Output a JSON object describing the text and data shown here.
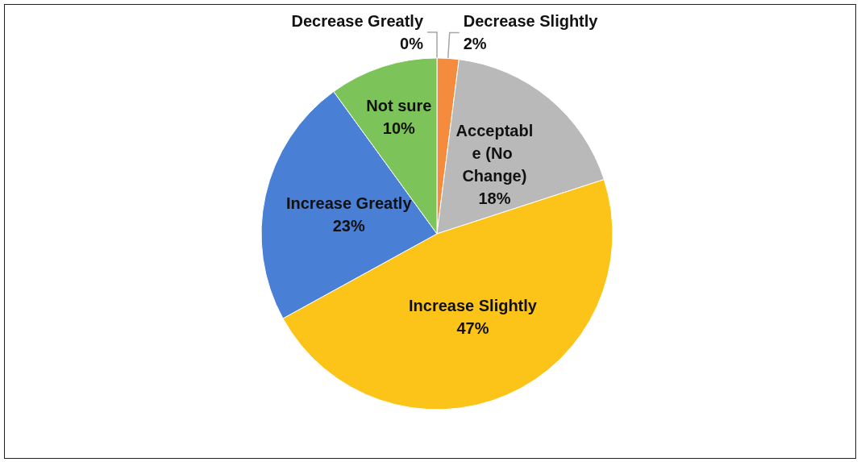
{
  "chart_data": {
    "type": "pie",
    "categories": [
      "Decrease Greatly",
      "Decrease Slightly",
      "Acceptable (No Change)",
      "Increase Slightly",
      "Increase Greatly",
      "Not sure"
    ],
    "values": [
      0,
      2,
      18,
      47,
      23,
      10
    ],
    "colors": [
      "#c0504d",
      "#f58b3c",
      "#b9b9b9",
      "#fcc419",
      "#4a7fd6",
      "#7cc45a"
    ],
    "value_labels": [
      "0%",
      "2%",
      "18%",
      "47%",
      "23%",
      "10%"
    ]
  }
}
